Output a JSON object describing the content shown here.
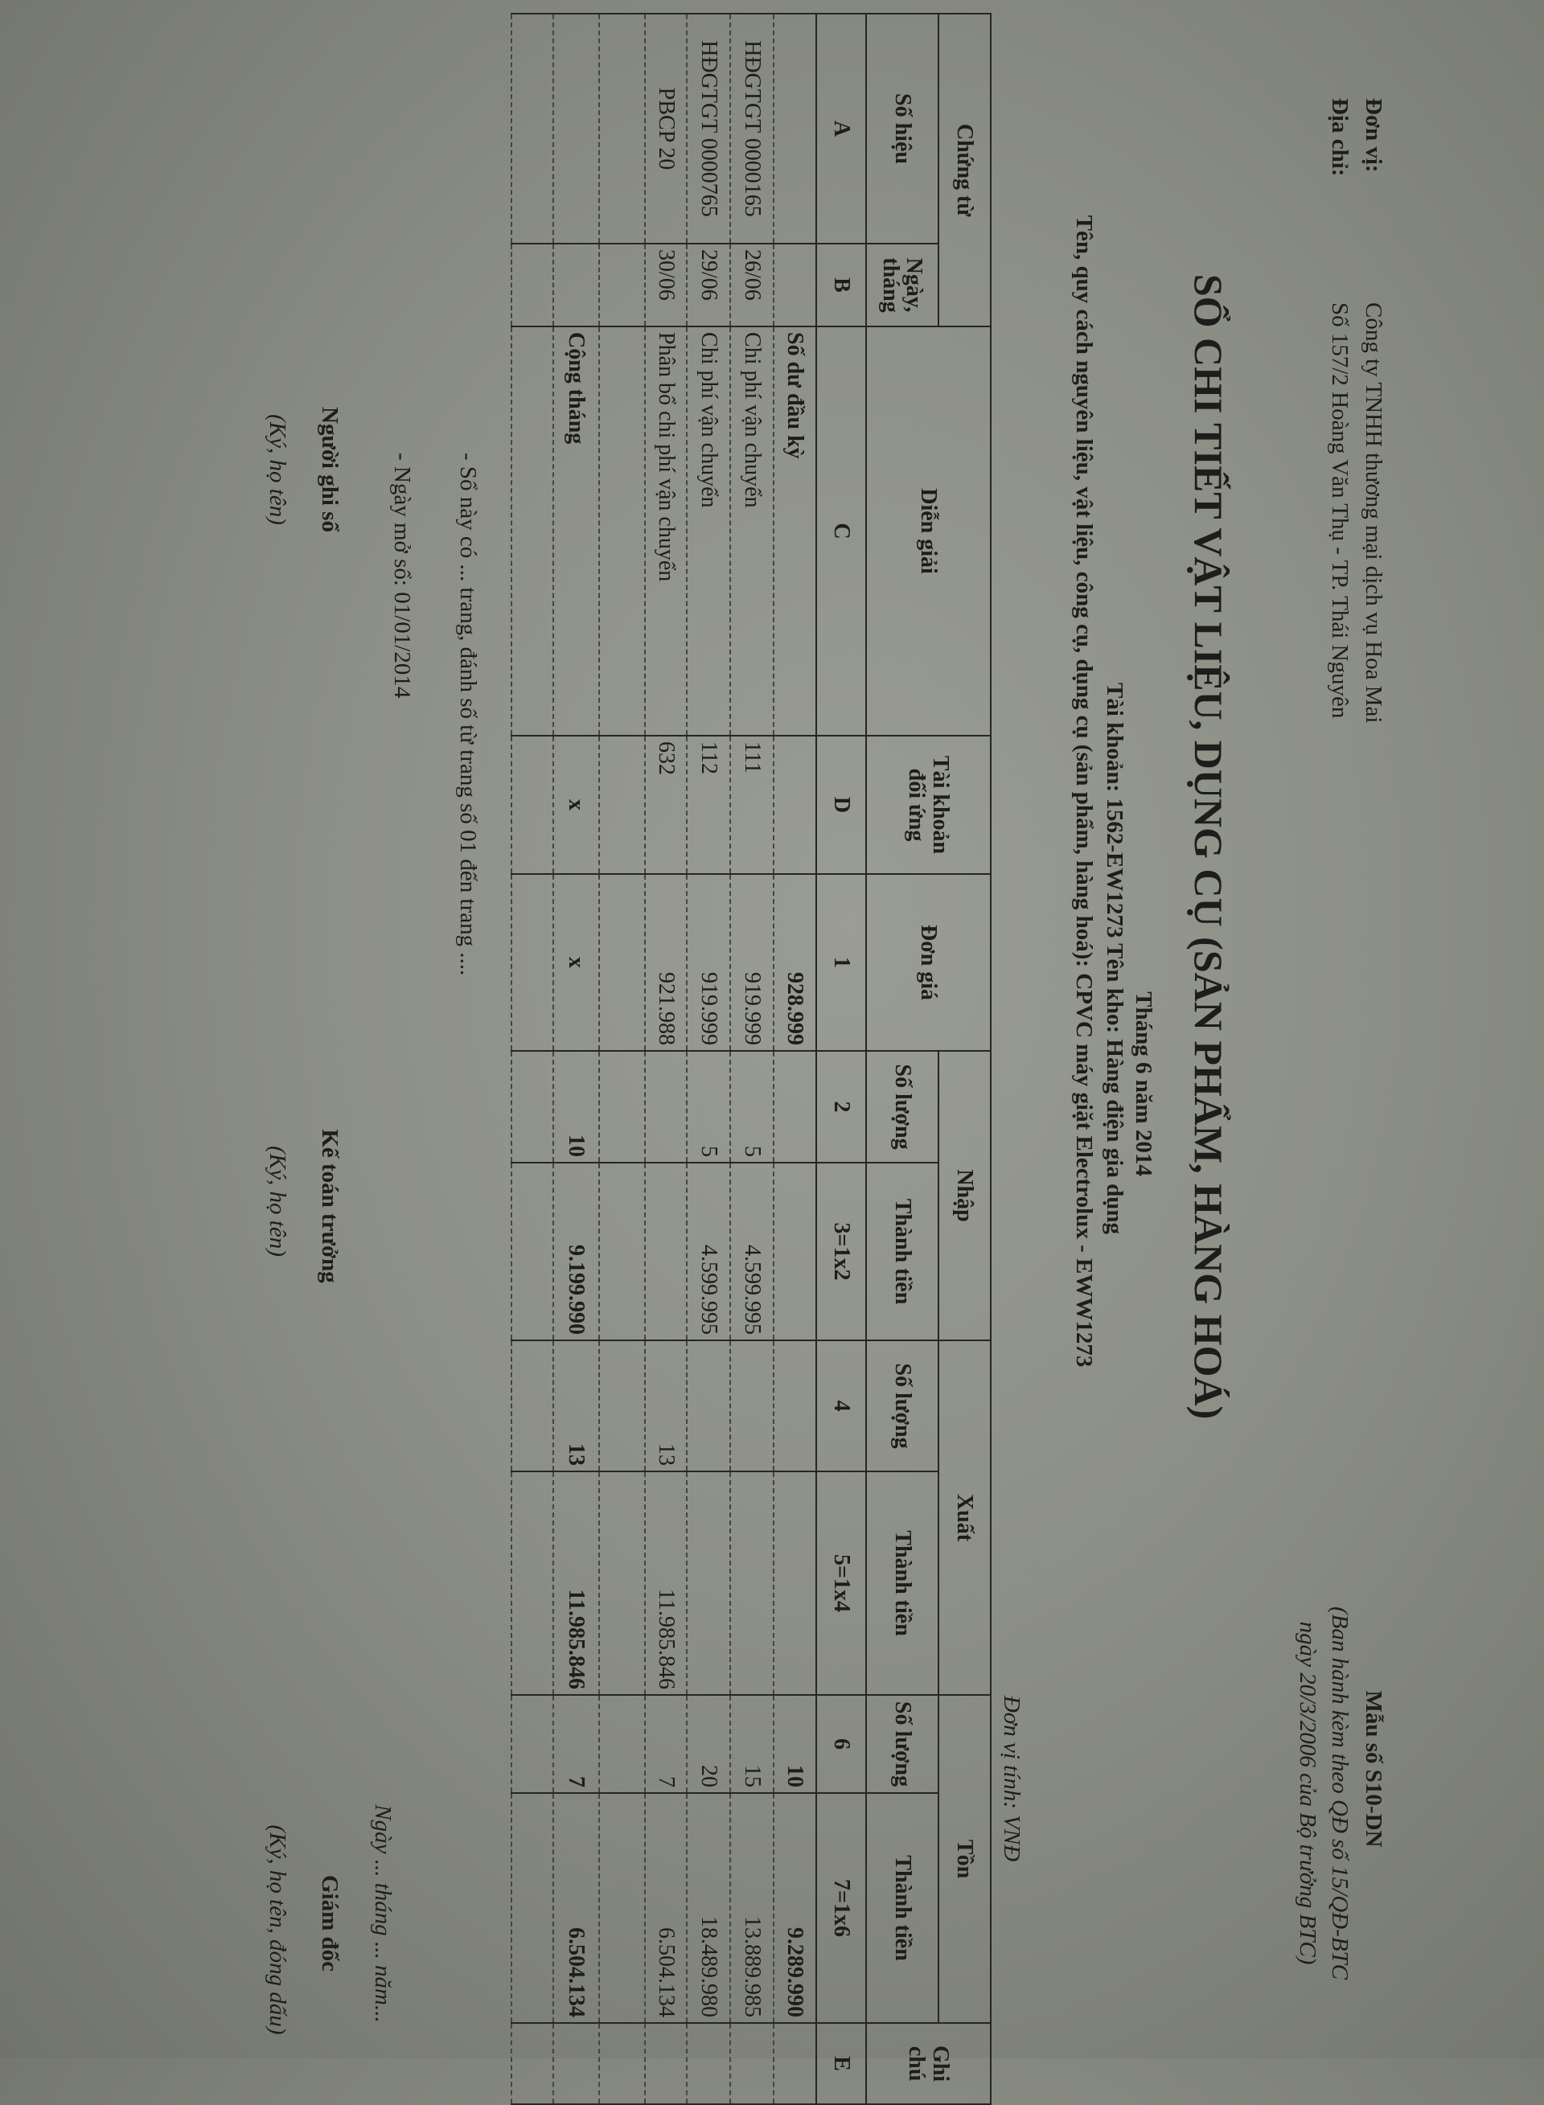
{
  "header": {
    "unit_label": "Đơn vị:",
    "unit_value": "Công ty TNHH thương mại dịch vụ Hoa Mai",
    "address_label": "Địa chỉ:",
    "address_value": "Số 157/2 Hoàng Văn Thụ - TP. Thái Nguyên",
    "form_no": "Mẫu số S10-DN",
    "form_note_1": "(Ban hành kèm theo QĐ số 15/QĐ-BTC",
    "form_note_2": "ngày 20/3/2006 của Bộ trưởng BTC)"
  },
  "title": "SỔ CHI TIẾT VẬT LIỆU, DỤNG CỤ (SẢN PHẨM, HÀNG HOÁ)",
  "period": "Tháng 6 năm 2014",
  "account_line": "Tài khoản: 1562-EW1273  Tên kho: Hàng điện gia dụng",
  "item_line": "Tên, quy cách nguyên liệu, vật liệu, công cụ, dụng cụ (sản phẩm, hàng hoá): CPVC máy giặt Electrolux - EWW1273",
  "currency_unit": "Đơn vị tính: VNĐ",
  "table": {
    "h_voucher": "Chứng từ",
    "h_number": "Số hiệu",
    "h_date": "Ngày, tháng",
    "h_desc": "Diễn giải",
    "h_account": "Tài khoản đối ứng",
    "h_price": "Đơn giá",
    "h_in": "Nhập",
    "h_out": "Xuất",
    "h_stock": "Tồn",
    "h_qty": "Số lượng",
    "h_amount": "Thành tiền",
    "h_note": "Ghi chú",
    "codes": [
      "A",
      "B",
      "C",
      "D",
      "1",
      "2",
      "3=1x2",
      "4",
      "5=1x4",
      "6",
      "7=1x6",
      "E"
    ],
    "rows": [
      {
        "cells": [
          "",
          "",
          "Số dư đầu kỳ",
          "",
          "928.999",
          "",
          "",
          "",
          "",
          "10",
          "9.289.990",
          ""
        ],
        "bold": true
      },
      {
        "cells": [
          "HĐGTGT 0000165",
          "26/06",
          "Chi phí vận chuyển",
          "111",
          "919.999",
          "5",
          "4.599.995",
          "",
          "",
          "15",
          "13.889.985",
          ""
        ]
      },
      {
        "cells": [
          "HĐGTGT 0000765",
          "29/06",
          "Chi phí vận chuyển",
          "112",
          "919.999",
          "5",
          "4.599.995",
          "",
          "",
          "20",
          "18.489.980",
          ""
        ]
      },
      {
        "cells": [
          "PBCP 20",
          "30/06",
          "Phân bổ chi phí vận chuyển",
          "632",
          "921.988",
          "",
          "",
          "13",
          "11.985.846",
          "7",
          "6.504.134",
          ""
        ]
      },
      {
        "cells": [
          "",
          "",
          "",
          "",
          "",
          "",
          "",
          "",
          "",
          "",
          "",
          ""
        ]
      },
      {
        "cells": [
          "",
          "",
          "Cộng tháng",
          "x",
          "x",
          "10",
          "9.199.990",
          "13",
          "11.985.846",
          "7",
          "6.504.134",
          ""
        ],
        "bold": true
      },
      {
        "cells": [
          "",
          "",
          "",
          "",
          "",
          "",
          "",
          "",
          "",
          "",
          "",
          ""
        ]
      }
    ]
  },
  "footer": {
    "note_pages": "- Sổ này có ... trang, đánh số từ trang số 01 đến trang ....",
    "note_open_date": "- Ngày mở sổ: 01/01/2014",
    "date_line": "Ngày ... tháng ... năm...",
    "sig1_title": "Người ghi sổ",
    "sig1_note": "(Ký, họ tên)",
    "sig2_title": "Kế toán trưởng",
    "sig2_note": "(Ký, họ tên)",
    "sig3_title": "Giám đốc",
    "sig3_note": "(Ký, họ tên, đóng dấu)"
  }
}
